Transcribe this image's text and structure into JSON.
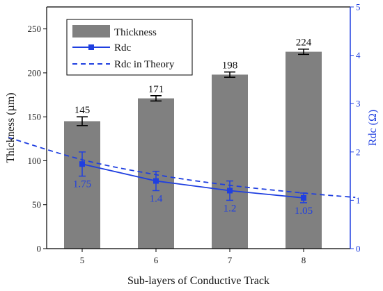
{
  "chart_data": {
    "type": "bar",
    "categories": [
      "5",
      "6",
      "7",
      "8"
    ],
    "xlabel": "Sub-layers of Conductive Track",
    "ylabel": "Thickness (µm)",
    "y2label": "Rdc (Ω)",
    "ylim": [
      0,
      275
    ],
    "y2lim": [
      0,
      5
    ],
    "yticks": [
      0,
      50,
      100,
      150,
      200,
      250
    ],
    "y2ticks": [
      0,
      1,
      2,
      3,
      4,
      5
    ],
    "series": [
      {
        "name": "Thickness",
        "type": "bar",
        "axis": "left",
        "values": [
          145,
          171,
          198,
          224
        ],
        "errors": [
          5,
          3,
          3,
          3
        ],
        "labels": [
          "145",
          "171",
          "198",
          "224"
        ],
        "color": "#808080"
      },
      {
        "name": "Rdc",
        "type": "line",
        "axis": "right",
        "values": [
          1.75,
          1.4,
          1.2,
          1.05
        ],
        "errors": [
          0.25,
          0.2,
          0.2,
          0.1
        ],
        "labels": [
          "1.75",
          "1.4",
          "1.2",
          "1.05"
        ],
        "color": "#1f3fe0"
      },
      {
        "name": "Rdc in Theory",
        "type": "line",
        "axis": "right",
        "style": "dashed",
        "x": [
          4,
          5,
          6,
          7,
          8,
          8.7
        ],
        "values": [
          2.3,
          1.84,
          1.53,
          1.31,
          1.15,
          1.06
        ],
        "color": "#1f3fe0"
      }
    ],
    "legend": {
      "position": "top-left",
      "items": [
        "Thickness",
        "Rdc",
        "Rdc in Theory"
      ]
    },
    "grid": false
  }
}
